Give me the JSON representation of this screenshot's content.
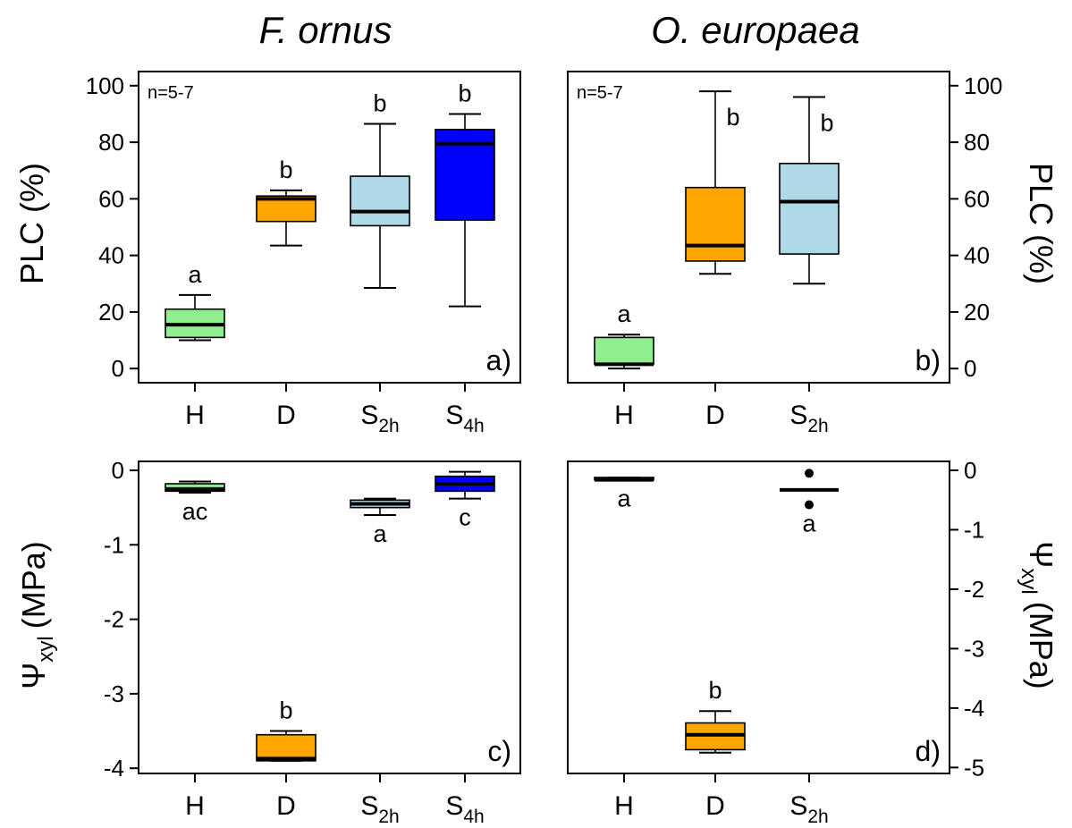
{
  "titles": {
    "left": "F. ornus",
    "right": "O. europaea"
  },
  "axes": {
    "plc_label": "PLC (%)",
    "psi_symbol": "Ψ",
    "psi_sub": "xyl",
    "psi_unit": "(MPa)"
  },
  "chart_data": [
    {
      "type": "box",
      "panel_label": "a)",
      "species": "F. ornus",
      "note": "n=5-7",
      "ylim": [
        -5,
        105
      ],
      "yticks": [
        0,
        20,
        40,
        60,
        80,
        100
      ],
      "ytick_side": "left",
      "categories": [
        "H",
        "D",
        "S2h",
        "S4h"
      ],
      "boxes": [
        {
          "category": "H",
          "whisker_low": 10,
          "q1": 11,
          "median": 15.5,
          "q3": 21,
          "whisker_high": 26,
          "color": "#90EE90",
          "letter": "a",
          "letter_pos": "above"
        },
        {
          "category": "D",
          "whisker_low": 43.5,
          "q1": 52,
          "median": 60,
          "q3": 61,
          "whisker_high": 63,
          "color": "#FFA500",
          "letter": "b",
          "letter_pos": "above"
        },
        {
          "category": "S2h",
          "whisker_low": 28.5,
          "q1": 50.5,
          "median": 55.5,
          "q3": 68,
          "whisker_high": 86.5,
          "color": "#ADD8E6",
          "letter": "b",
          "letter_pos": "above"
        },
        {
          "category": "S4h",
          "whisker_low": 22,
          "q1": 52.5,
          "median": 79.5,
          "q3": 84.5,
          "whisker_high": 90,
          "color": "#0000FF",
          "letter": "b",
          "letter_pos": "above"
        }
      ]
    },
    {
      "type": "box",
      "panel_label": "b)",
      "species": "O. europaea",
      "note": "n=5-7",
      "ylim": [
        -5,
        105
      ],
      "yticks": [
        0,
        20,
        40,
        60,
        80,
        100
      ],
      "ytick_side": "right",
      "categories": [
        "H",
        "D",
        "S2h"
      ],
      "boxes": [
        {
          "category": "H",
          "whisker_low": 0,
          "q1": 1.5,
          "median": 1.5,
          "q3": 11,
          "whisker_high": 12,
          "color": "#90EE90",
          "letter": "a",
          "letter_pos": "above"
        },
        {
          "category": "D",
          "whisker_low": 33.5,
          "q1": 38,
          "median": 43.5,
          "q3": 64,
          "whisker_high": 98,
          "color": "#FFA500",
          "letter": "b",
          "letter_pos": "inside_top"
        },
        {
          "category": "S2h",
          "whisker_low": 30,
          "q1": 40.5,
          "median": 59,
          "q3": 72.5,
          "whisker_high": 96,
          "color": "#ADD8E6",
          "letter": "b",
          "letter_pos": "inside_top"
        }
      ]
    },
    {
      "type": "box",
      "panel_label": "c)",
      "species": "F. ornus",
      "ylim": [
        -4.07,
        0.12
      ],
      "yticks": [
        0,
        -1,
        -2,
        -3,
        -4
      ],
      "ytick_side": "left",
      "categories": [
        "H",
        "D",
        "S2h",
        "S4h"
      ],
      "boxes": [
        {
          "category": "H",
          "whisker_low": -0.3,
          "q1": -0.28,
          "median": -0.25,
          "q3": -0.18,
          "whisker_high": -0.15,
          "color": "#90EE90",
          "letter": "ac",
          "letter_pos": "below"
        },
        {
          "category": "D",
          "whisker_low": -3.9,
          "q1": -3.9,
          "median": -3.87,
          "q3": -3.55,
          "whisker_high": -3.5,
          "color": "#FFA500",
          "letter": "b",
          "letter_pos": "above"
        },
        {
          "category": "S2h",
          "whisker_low": -0.6,
          "q1": -0.5,
          "median": -0.45,
          "q3": -0.4,
          "whisker_high": -0.38,
          "color": "#ADD8E6",
          "letter": "a",
          "letter_pos": "below"
        },
        {
          "category": "S4h",
          "whisker_low": -0.38,
          "q1": -0.28,
          "median": -0.18,
          "q3": -0.08,
          "whisker_high": -0.02,
          "color": "#0000FF",
          "letter": "c",
          "letter_pos": "below"
        }
      ]
    },
    {
      "type": "box",
      "panel_label": "d)",
      "species": "O. europaea",
      "ylim": [
        -5.1,
        0.15
      ],
      "yticks": [
        0,
        -1,
        -2,
        -3,
        -4,
        -5
      ],
      "ytick_side": "right",
      "categories": [
        "H",
        "D",
        "S2h"
      ],
      "boxes": [
        {
          "category": "H",
          "whisker_low": -0.16,
          "q1": -0.16,
          "median": -0.16,
          "q3": -0.12,
          "whisker_high": -0.12,
          "color": "#90EE90",
          "letter": "a",
          "letter_pos": "below"
        },
        {
          "category": "D",
          "whisker_low": -4.75,
          "q1": -4.7,
          "median": -4.45,
          "q3": -4.25,
          "whisker_high": -4.05,
          "color": "#FFA500",
          "letter": "b",
          "letter_pos": "above"
        },
        {
          "category": "S2h",
          "whisker_low": -0.33,
          "q1": -0.33,
          "median": -0.33,
          "q3": -0.33,
          "whisker_high": -0.33,
          "outliers": [
            -0.05,
            -0.58
          ],
          "color": "#ADD8E6",
          "letter": "a",
          "letter_pos": "below"
        }
      ]
    }
  ]
}
